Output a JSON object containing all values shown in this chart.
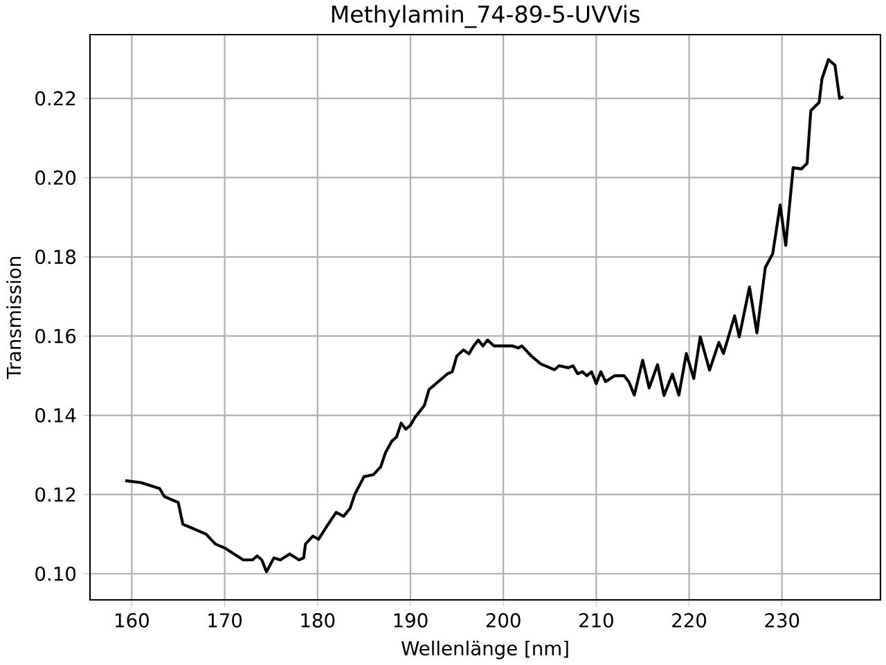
{
  "chart_data": {
    "type": "line",
    "title": "Methylamin_74-89-5-UVVis",
    "xlabel": "Wellenlänge [nm]",
    "ylabel": "Transmission",
    "xlim": [
      155.5,
      240.6
    ],
    "ylim": [
      0.0934,
      0.2361
    ],
    "xticks": [
      160,
      170,
      180,
      190,
      200,
      210,
      220,
      230
    ],
    "yticks": [
      {
        "value": 0.1,
        "label": "0.10"
      },
      {
        "value": 0.12,
        "label": "0.12"
      },
      {
        "value": 0.14,
        "label": "0.14"
      },
      {
        "value": 0.16,
        "label": "0.16"
      },
      {
        "value": 0.18,
        "label": "0.18"
      },
      {
        "value": 0.2,
        "label": "0.20"
      },
      {
        "value": 0.22,
        "label": "0.22"
      }
    ],
    "grid": true,
    "line_style": "solid",
    "marker": "none",
    "series": [
      {
        "color": "#000000",
        "x": [
          159.3,
          161,
          163,
          163.5,
          165,
          165.5,
          168,
          169,
          170,
          171,
          172,
          173,
          173.5,
          174,
          174.5,
          175.3,
          176,
          177,
          178,
          178.5,
          178.7,
          179.5,
          180.1,
          181,
          182,
          182.8,
          183.5,
          184,
          185,
          186,
          186.8,
          187.3,
          188,
          188.5,
          189,
          189.5,
          190,
          190.5,
          191.5,
          192,
          193,
          194,
          194.5,
          195,
          195.7,
          196.3,
          196.8,
          197.3,
          197.8,
          198.3,
          199,
          200,
          201,
          201.6,
          202,
          203,
          204,
          205,
          205.5,
          206,
          207,
          207.5,
          208,
          208.5,
          209,
          209.5,
          210,
          210.5,
          211,
          212,
          213,
          213.5,
          214.1,
          215.0,
          215.7,
          216.6,
          217.3,
          218.2,
          218.9,
          219.7,
          220.5,
          221.2,
          222.2,
          223.2,
          223.7,
          224.9,
          225.4,
          226.5,
          227.3,
          228.2,
          229.0,
          229.8,
          230.4,
          231.2,
          232.1,
          232.7,
          233.1,
          234.0,
          234.3,
          235.0,
          235.7,
          236.2,
          236.6
        ],
        "values": [
          0.1235,
          0.123,
          0.1215,
          0.1195,
          0.118,
          0.1125,
          0.11,
          0.1075,
          0.1065,
          0.105,
          0.1035,
          0.1035,
          0.1045,
          0.1035,
          0.1005,
          0.104,
          0.1035,
          0.105,
          0.1035,
          0.104,
          0.1075,
          0.1095,
          0.1087,
          0.112,
          0.1155,
          0.1145,
          0.1165,
          0.12,
          0.1245,
          0.125,
          0.127,
          0.1305,
          0.1335,
          0.1345,
          0.138,
          0.1365,
          0.1375,
          0.1395,
          0.1425,
          0.1465,
          0.1485,
          0.1505,
          0.151,
          0.155,
          0.1565,
          0.1555,
          0.1575,
          0.159,
          0.1575,
          0.159,
          0.1575,
          0.1575,
          0.1575,
          0.157,
          0.1575,
          0.155,
          0.153,
          0.152,
          0.1515,
          0.1525,
          0.152,
          0.1525,
          0.1505,
          0.151,
          0.15,
          0.151,
          0.148,
          0.151,
          0.1485,
          0.15,
          0.15,
          0.1485,
          0.1451,
          0.1539,
          0.1469,
          0.1528,
          0.145,
          0.1504,
          0.1451,
          0.1556,
          0.1493,
          0.1598,
          0.1514,
          0.1584,
          0.1556,
          0.1651,
          0.1598,
          0.1724,
          0.1608,
          0.1773,
          0.1808,
          0.1931,
          0.1829,
          0.2025,
          0.2022,
          0.2036,
          0.2169,
          0.219,
          0.2249,
          0.2298,
          0.2284,
          0.22,
          0.2204
        ]
      }
    ]
  }
}
